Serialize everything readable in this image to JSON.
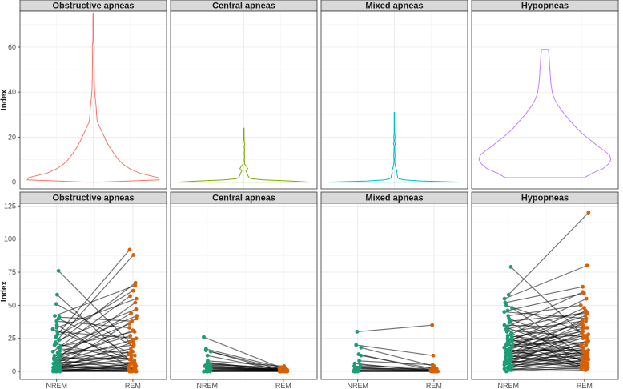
{
  "chart_data": [
    {
      "type": "violin",
      "ylabel": "Index",
      "ylim": [
        -3,
        76
      ],
      "yticks": [
        0,
        20,
        40,
        60
      ],
      "panels": [
        {
          "title": "Obstructive apneas",
          "color": "#F8766D",
          "ymax": 75,
          "profile": [
            [
              0,
              0.1
            ],
            [
              1,
              1.0
            ],
            [
              2,
              0.98
            ],
            [
              4,
              0.7
            ],
            [
              6,
              0.55
            ],
            [
              8,
              0.45
            ],
            [
              10,
              0.38
            ],
            [
              12,
              0.33
            ],
            [
              15,
              0.26
            ],
            [
              18,
              0.2
            ],
            [
              20,
              0.17
            ],
            [
              23,
              0.12
            ],
            [
              25,
              0.09
            ],
            [
              27,
              0.06
            ],
            [
              30,
              0.05
            ],
            [
              33,
              0.045
            ],
            [
              36,
              0.035
            ],
            [
              38,
              0.027
            ],
            [
              42,
              0.018
            ],
            [
              46,
              0.015
            ],
            [
              50,
              0.014
            ],
            [
              52,
              0.012
            ],
            [
              56,
              0.011
            ],
            [
              58,
              0.014
            ],
            [
              60,
              0.015
            ],
            [
              62,
              0.008
            ],
            [
              66,
              0.004
            ],
            [
              70,
              0.006
            ],
            [
              73,
              0.005
            ],
            [
              75,
              0.005
            ]
          ]
        },
        {
          "title": "Central apneas",
          "color": "#7CAE00",
          "ymax": 24,
          "profile": [
            [
              0,
              1.0
            ],
            [
              0.5,
              0.7
            ],
            [
              1,
              0.3
            ],
            [
              1.5,
              0.12
            ],
            [
              2,
              0.08
            ],
            [
              3,
              0.06
            ],
            [
              4,
              0.05
            ],
            [
              5,
              0.03
            ],
            [
              6,
              0.06
            ],
            [
              7,
              0.04
            ],
            [
              8,
              0.012
            ],
            [
              10,
              0.008
            ],
            [
              11,
              0.012
            ],
            [
              13,
              0.008
            ],
            [
              14,
              0.012
            ],
            [
              16,
              0.008
            ],
            [
              17,
              0.015
            ],
            [
              18,
              0.008
            ],
            [
              20,
              0.005
            ],
            [
              22,
              0.005
            ],
            [
              24,
              0.004
            ]
          ]
        },
        {
          "title": "Mixed apneas",
          "color": "#00BFC4",
          "ymax": 31,
          "profile": [
            [
              0,
              1.0
            ],
            [
              0.5,
              0.4
            ],
            [
              1,
              0.15
            ],
            [
              1.5,
              0.07
            ],
            [
              2,
              0.05
            ],
            [
              3,
              0.045
            ],
            [
              4,
              0.03
            ],
            [
              5,
              0.04
            ],
            [
              6,
              0.025
            ],
            [
              8,
              0.01
            ],
            [
              10,
              0.006
            ],
            [
              12,
              0.01
            ],
            [
              14,
              0.006
            ],
            [
              16,
              0.004
            ],
            [
              17,
              0.014
            ],
            [
              18,
              0.004
            ],
            [
              20,
              0.01
            ],
            [
              22,
              0.004
            ],
            [
              26,
              0.003
            ],
            [
              30,
              0.003
            ],
            [
              31,
              0.003
            ]
          ]
        },
        {
          "title": "Hypopneas",
          "color": "#C77CFF",
          "ymin": 2,
          "ymax": 59,
          "profile": [
            [
              2,
              0.6
            ],
            [
              4,
              0.72
            ],
            [
              6,
              0.88
            ],
            [
              8,
              0.96
            ],
            [
              10,
              1.0
            ],
            [
              12,
              0.98
            ],
            [
              14,
              0.9
            ],
            [
              16,
              0.8
            ],
            [
              18,
              0.72
            ],
            [
              20,
              0.63
            ],
            [
              22,
              0.55
            ],
            [
              24,
              0.48
            ],
            [
              26,
              0.42
            ],
            [
              28,
              0.36
            ],
            [
              30,
              0.3
            ],
            [
              32,
              0.25
            ],
            [
              34,
              0.2
            ],
            [
              36,
              0.16
            ],
            [
              38,
              0.13
            ],
            [
              40,
              0.11
            ],
            [
              44,
              0.09
            ],
            [
              48,
              0.08
            ],
            [
              52,
              0.07
            ],
            [
              55,
              0.065
            ],
            [
              57,
              0.06
            ],
            [
              59,
              0.05
            ]
          ]
        }
      ]
    },
    {
      "type": "paired-scatter",
      "ylabel": "Index",
      "categories": [
        "NREM",
        "REM"
      ],
      "ylim": [
        -6,
        127
      ],
      "yticks": [
        0,
        25,
        50,
        75,
        100,
        125
      ],
      "nrem_color": "#1B9E77",
      "rem_color": "#D95F02",
      "panels": [
        {
          "title": "Obstructive apneas",
          "pairs": [
            [
              76,
              22
            ],
            [
              58,
              4
            ],
            [
              51,
              19
            ],
            [
              42,
              65
            ],
            [
              41,
              38
            ],
            [
              40,
              12
            ],
            [
              38,
              33
            ],
            [
              35,
              1
            ],
            [
              33,
              55
            ],
            [
              32,
              9
            ],
            [
              30,
              25
            ],
            [
              28,
              92
            ],
            [
              26,
              61
            ],
            [
              24,
              47
            ],
            [
              22,
              88
            ],
            [
              21,
              8
            ],
            [
              20,
              67
            ],
            [
              19,
              30
            ],
            [
              18,
              42
            ],
            [
              17,
              14
            ],
            [
              16,
              5
            ],
            [
              15,
              57
            ],
            [
              14,
              36
            ],
            [
              13,
              20
            ],
            [
              12,
              3
            ],
            [
              11,
              52
            ],
            [
              10,
              27
            ],
            [
              10,
              10
            ],
            [
              9,
              44
            ],
            [
              9,
              2
            ],
            [
              8,
              17
            ],
            [
              8,
              31
            ],
            [
              7,
              6
            ],
            [
              7,
              24
            ],
            [
              6,
              1
            ],
            [
              6,
              12
            ],
            [
              5,
              40
            ],
            [
              5,
              0
            ],
            [
              4,
              15
            ],
            [
              4,
              7
            ],
            [
              3,
              22
            ],
            [
              3,
              2
            ],
            [
              3,
              9
            ],
            [
              2,
              0
            ],
            [
              2,
              5
            ],
            [
              2,
              13
            ],
            [
              1,
              1
            ],
            [
              1,
              3
            ],
            [
              1,
              0
            ],
            [
              0,
              0
            ],
            [
              0,
              2
            ],
            [
              0,
              6
            ],
            [
              0,
              4
            ],
            [
              0,
              1
            ],
            [
              0,
              0
            ]
          ]
        },
        {
          "title": "Central apneas",
          "pairs": [
            [
              26,
              1
            ],
            [
              17,
              3
            ],
            [
              16,
              0
            ],
            [
              15,
              2
            ],
            [
              12,
              1
            ],
            [
              8,
              4
            ],
            [
              7,
              0
            ],
            [
              6,
              2
            ],
            [
              6,
              1
            ],
            [
              5,
              0
            ],
            [
              5,
              3
            ],
            [
              4,
              1
            ],
            [
              4,
              0
            ],
            [
              3,
              2
            ],
            [
              3,
              0
            ],
            [
              2,
              1
            ],
            [
              2,
              0
            ],
            [
              2,
              2
            ],
            [
              1,
              0
            ],
            [
              1,
              1
            ],
            [
              1,
              0
            ],
            [
              0,
              0
            ],
            [
              0,
              1
            ],
            [
              0,
              0
            ],
            [
              0,
              2
            ],
            [
              0,
              0
            ]
          ]
        },
        {
          "title": "Mixed apneas",
          "pairs": [
            [
              30,
              35
            ],
            [
              20,
              12
            ],
            [
              18,
              4
            ],
            [
              13,
              1
            ],
            [
              12,
              2
            ],
            [
              8,
              5
            ],
            [
              6,
              0
            ],
            [
              5,
              1
            ],
            [
              4,
              3
            ],
            [
              3,
              0
            ],
            [
              3,
              1
            ],
            [
              2,
              0
            ],
            [
              2,
              2
            ],
            [
              1,
              0
            ],
            [
              1,
              1
            ],
            [
              0,
              0
            ],
            [
              0,
              0
            ],
            [
              0,
              1
            ],
            [
              0,
              0
            ]
          ]
        },
        {
          "title": "Hypopneas",
          "pairs": [
            [
              79,
              25
            ],
            [
              58,
              120
            ],
            [
              55,
              80
            ],
            [
              52,
              64
            ],
            [
              50,
              30
            ],
            [
              48,
              10
            ],
            [
              46,
              59
            ],
            [
              45,
              40
            ],
            [
              42,
              50
            ],
            [
              40,
              18
            ],
            [
              38,
              44
            ],
            [
              37,
              6
            ],
            [
              35,
              33
            ],
            [
              34,
              60
            ],
            [
              33,
              12
            ],
            [
              32,
              45
            ],
            [
              31,
              26
            ],
            [
              30,
              38
            ],
            [
              29,
              3
            ],
            [
              28,
              55
            ],
            [
              27,
              20
            ],
            [
              26,
              35
            ],
            [
              25,
              8
            ],
            [
              24,
              42
            ],
            [
              24,
              15
            ],
            [
              23,
              28
            ],
            [
              22,
              48
            ],
            [
              22,
              5
            ],
            [
              21,
              30
            ],
            [
              20,
              22
            ],
            [
              20,
              12
            ],
            [
              19,
              38
            ],
            [
              18,
              2
            ],
            [
              18,
              25
            ],
            [
              17,
              46
            ],
            [
              16,
              16
            ],
            [
              16,
              33
            ],
            [
              15,
              9
            ],
            [
              14,
              27
            ],
            [
              14,
              40
            ],
            [
              13,
              19
            ],
            [
              12,
              4
            ],
            [
              12,
              31
            ],
            [
              11,
              14
            ],
            [
              11,
              23
            ],
            [
              10,
              7
            ],
            [
              10,
              36
            ],
            [
              9,
              18
            ],
            [
              9,
              12
            ],
            [
              8,
              26
            ],
            [
              8,
              3
            ],
            [
              7,
              20
            ],
            [
              7,
              10
            ],
            [
              6,
              15
            ],
            [
              6,
              29
            ],
            [
              5,
              6
            ],
            [
              5,
              22
            ],
            [
              4,
              13
            ],
            [
              4,
              2
            ],
            [
              3,
              17
            ],
            [
              3,
              9
            ],
            [
              2,
              11
            ],
            [
              2,
              1
            ],
            [
              1,
              5
            ],
            [
              1,
              8
            ],
            [
              0,
              3
            ]
          ]
        }
      ]
    }
  ]
}
